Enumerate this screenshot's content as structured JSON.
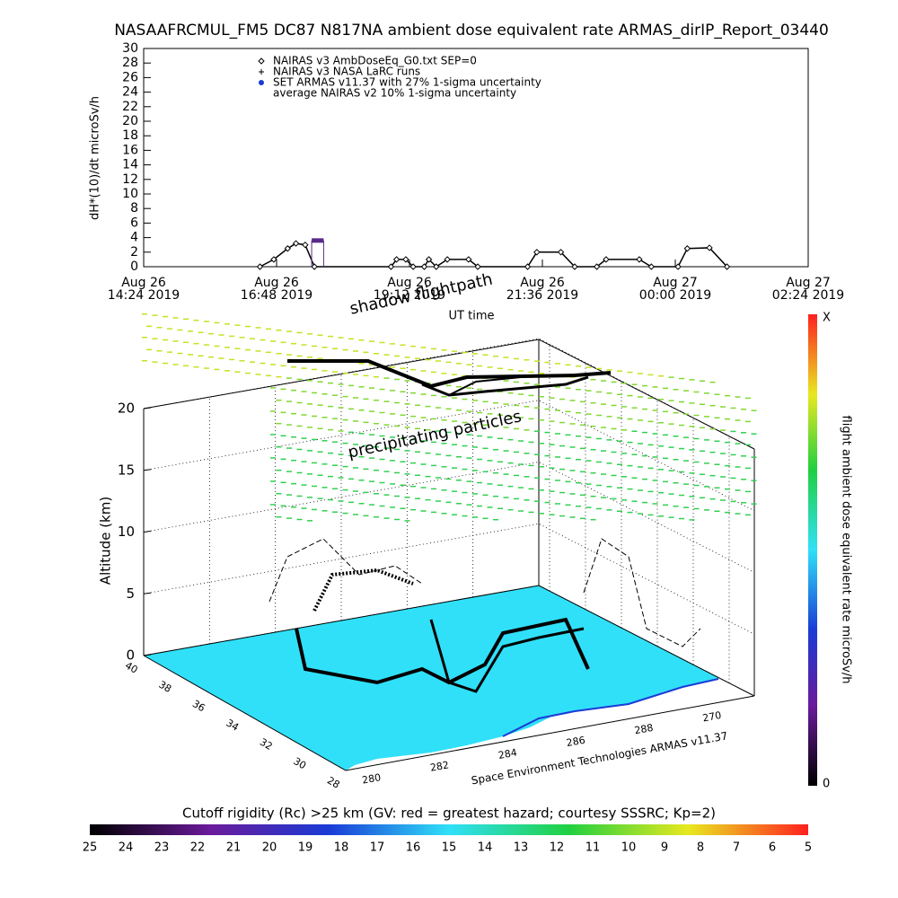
{
  "chart_data": [
    {
      "type": "line",
      "title": "NASAAFRCMUL_FM5 DC87 N817NA ambient dose equivalent rate ARMAS_dirIP_Report_03440",
      "ylabel": "dH*(10)/dt microSv/h",
      "xlabel": "UT time",
      "xlim": [
        "2019-08-26 14:24",
        "2019-08-27 02:24"
      ],
      "xticks": [
        {
          "value": "2019-08-26 14:24",
          "label": [
            "Aug 26",
            "14:24 2019"
          ]
        },
        {
          "value": "2019-08-26 16:48",
          "label": [
            "Aug 26",
            "16:48 2019"
          ]
        },
        {
          "value": "2019-08-26 19:12",
          "label": [
            "Aug 26",
            "19:12 2019"
          ]
        },
        {
          "value": "2019-08-26 21:36",
          "label": [
            "Aug 26",
            "21:36 2019"
          ]
        },
        {
          "value": "2019-08-27 00:00",
          "label": [
            "Aug 27",
            "00:00 2019"
          ]
        },
        {
          "value": "2019-08-27 02:24",
          "label": [
            "Aug 27",
            "02:24 2019"
          ]
        }
      ],
      "ylim": [
        0,
        30
      ],
      "yticks": [
        0,
        2,
        4,
        6,
        8,
        10,
        12,
        14,
        16,
        18,
        20,
        22,
        24,
        26,
        28,
        30
      ],
      "series": [
        {
          "name": "NAIRAS v3 AmbDoseEq_G0.txt SEP=0",
          "marker": "diamond",
          "color": "#000000",
          "x": [
            "2019-08-26 16:30",
            "2019-08-26 16:45",
            "2019-08-26 17:00",
            "2019-08-26 17:09",
            "2019-08-26 17:19",
            "2019-08-26 17:29",
            "2019-08-26 18:52",
            "2019-08-26 18:58",
            "2019-08-26 19:08",
            "2019-08-26 19:16",
            "2019-08-26 19:28",
            "2019-08-26 19:33",
            "2019-08-26 19:41",
            "2019-08-26 19:53",
            "2019-08-26 20:16",
            "2019-08-26 20:26",
            "2019-08-26 21:20",
            "2019-08-26 21:30",
            "2019-08-26 21:56",
            "2019-08-26 22:11",
            "2019-08-26 22:35",
            "2019-08-26 22:45",
            "2019-08-26 23:21",
            "2019-08-26 23:34",
            "2019-08-27 00:03",
            "2019-08-27 00:13",
            "2019-08-27 00:37",
            "2019-08-27 00:56"
          ],
          "values": [
            0,
            1,
            2.5,
            3.2,
            3,
            0,
            0,
            1,
            1,
            0,
            0,
            1,
            0,
            1,
            1,
            0,
            0,
            2,
            2,
            0,
            0,
            1,
            1,
            0,
            0,
            2.5,
            2.6,
            0
          ]
        },
        {
          "name": "NAIRAS v3 NASA LaRC runs",
          "marker": "plus",
          "color": "#000000",
          "x": [],
          "values": []
        },
        {
          "name": "SET ARMAS v11.37 with 27% 1-sigma uncertainty",
          "marker": "dot",
          "color": "#5a2a8a",
          "legend_color": "#1a3bd6",
          "x": [
            "2019-08-26 17:26",
            "2019-08-26 17:39"
          ],
          "values": [
            3.6,
            3.6
          ]
        },
        {
          "name": "average NAIRAS v2 10% 1-sigma uncertainty",
          "marker": "none",
          "color": "#000000",
          "x": [],
          "values": []
        }
      ]
    },
    {
      "type": "surface3d",
      "annotations": [
        "shadow flightpath",
        "precipitating particles"
      ],
      "zlabel": "Altitude (km)",
      "zlim": [
        0,
        20
      ],
      "zticks": [
        0,
        5,
        10,
        15,
        20
      ],
      "lat_labels": [
        "40",
        "38",
        "36",
        "34",
        "32",
        "30",
        "28"
      ],
      "lon_labels": [
        "280",
        "282",
        "284",
        "286",
        "288",
        "270"
      ],
      "credit": "Space Environment Technologies ARMAS v11.37",
      "colorbar": {
        "title": "flight ambient dose equivalent rate microSv/h",
        "top_label": "X",
        "bottom_label": "0"
      }
    },
    {
      "type": "colorbar",
      "title": "Cutoff rigidity (Rc) >25 km (GV: red = greatest hazard; courtesy SSSRC; Kp=2)",
      "ticks": [
        25,
        24,
        23,
        22,
        21,
        20,
        19,
        18,
        17,
        16,
        15,
        14,
        13,
        12,
        11,
        10,
        9,
        8,
        7,
        6,
        5
      ],
      "colors": [
        "#000000",
        "#6a1a9a",
        "#1a3bd6",
        "#30e0f8",
        "#20d040",
        "#e8e820",
        "#ff2020"
      ]
    }
  ]
}
